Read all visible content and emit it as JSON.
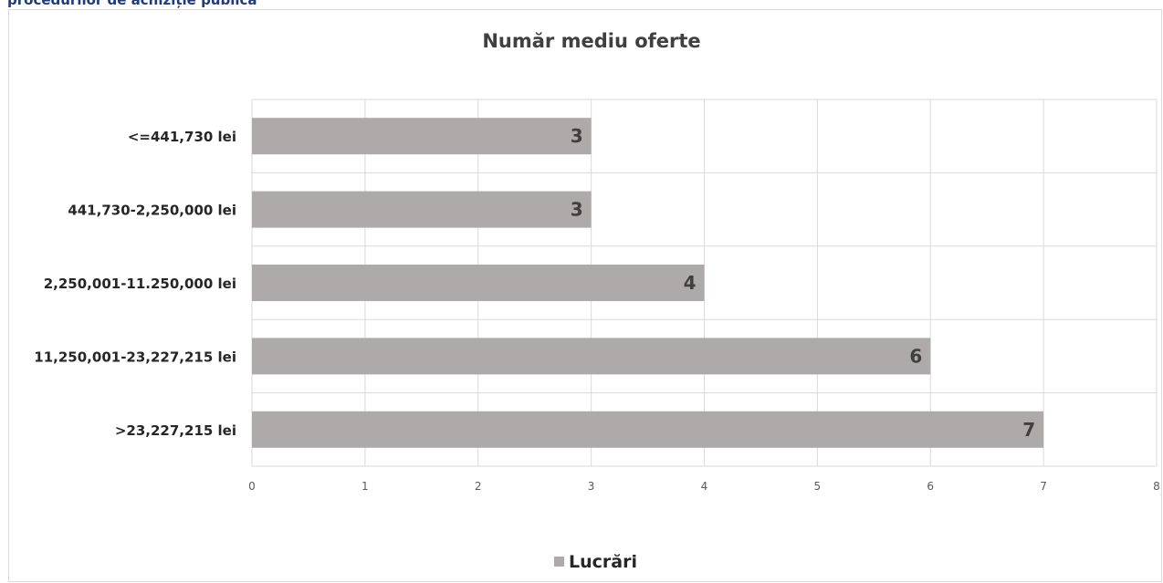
{
  "page": {
    "heading": "procedurilor de achiziție publică"
  },
  "colors": {
    "bar": "#aeaaa9",
    "grid": "#d9d9d9",
    "heading": "#1f3b7a"
  },
  "chart_data": {
    "type": "bar",
    "orientation": "horizontal",
    "title": "Număr mediu oferte",
    "categories": [
      "<=441,730 lei",
      "441,730-2,250,000 lei",
      "2,250,001-11.250,000 lei",
      "11,250,001-23,227,215 lei",
      ">23,227,215 lei"
    ],
    "series": [
      {
        "name": "Lucrări",
        "values": [
          3,
          3,
          4,
          6,
          7
        ],
        "color": "#aeaaa9"
      }
    ],
    "data_labels": [
      "3",
      "3",
      "4",
      "6",
      "7"
    ],
    "xlim": [
      0,
      8
    ],
    "x_ticks": [
      "0",
      "1",
      "2",
      "3",
      "4",
      "5",
      "6",
      "7",
      "8"
    ],
    "grid": true,
    "legend_position": "bottom"
  }
}
